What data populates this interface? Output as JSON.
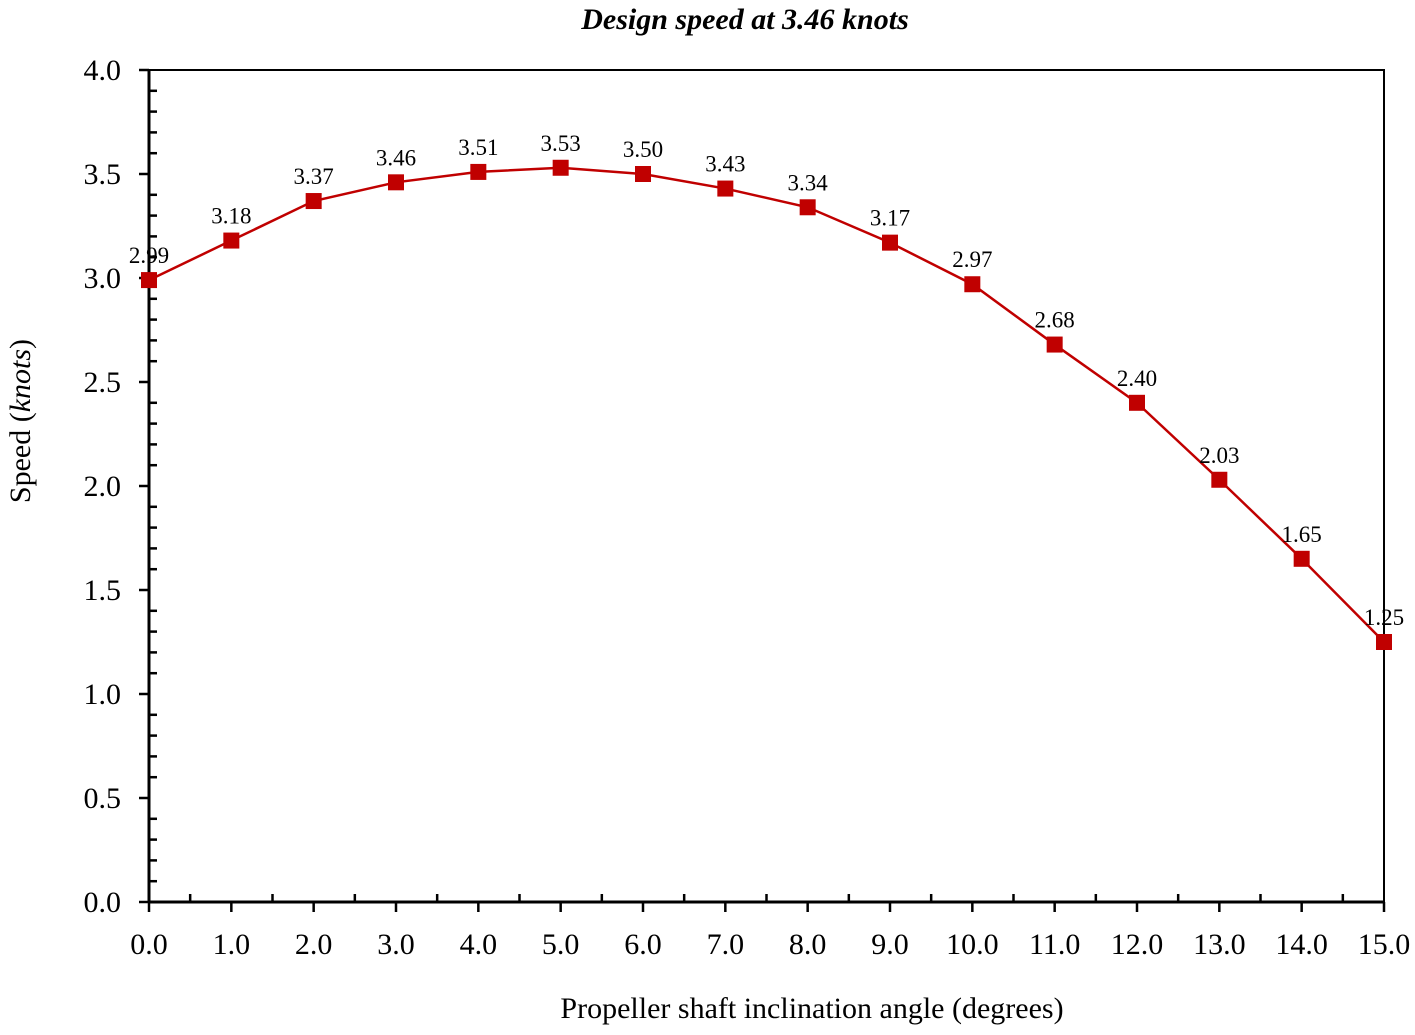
{
  "chart_data": {
    "type": "line",
    "title": "Design speed at 3.46 knots",
    "xlabel": "Propeller shaft inclination angle (degrees)",
    "ylabel_prefix": "Speed (",
    "ylabel_italic": "knots",
    "ylabel_suffix": ")",
    "xlim": [
      0,
      15
    ],
    "ylim": [
      0,
      4
    ],
    "xticks": [
      "0.0",
      "1.0",
      "2.0",
      "3.0",
      "4.0",
      "5.0",
      "6.0",
      "7.0",
      "8.0",
      "9.0",
      "10.0",
      "11.0",
      "12.0",
      "13.0",
      "14.0",
      "15.0"
    ],
    "yticks": [
      "0.0",
      "0.5",
      "1.0",
      "1.5",
      "2.0",
      "2.5",
      "3.0",
      "3.5",
      "4.0"
    ],
    "grid": false,
    "series": [
      {
        "name": "Speed",
        "color": "#c00000",
        "marker": "square",
        "x": [
          0,
          1,
          2,
          3,
          4,
          5,
          6,
          7,
          8,
          9,
          10,
          11,
          12,
          13,
          14,
          15
        ],
        "y": [
          2.99,
          3.18,
          3.37,
          3.46,
          3.51,
          3.53,
          3.5,
          3.43,
          3.34,
          3.17,
          2.97,
          2.68,
          2.4,
          2.03,
          1.65,
          1.25
        ],
        "labels": [
          "2.99",
          "3.18",
          "3.37",
          "3.46",
          "3.51",
          "3.53",
          "3.50",
          "3.43",
          "3.34",
          "3.17",
          "2.97",
          "2.68",
          "2.40",
          "2.03",
          "1.65",
          "1.25"
        ]
      }
    ]
  }
}
